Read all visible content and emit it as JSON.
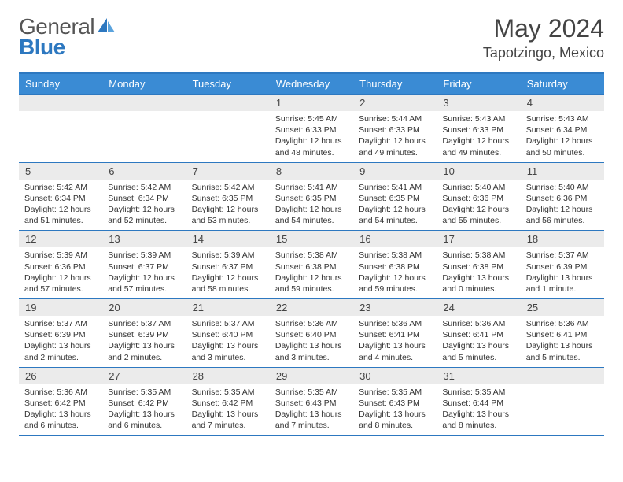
{
  "logo": {
    "text1": "General",
    "text2": "Blue"
  },
  "title": "May 2024",
  "location": "Tapotzingo, Mexico",
  "colors": {
    "header_bg": "#3a8bd4",
    "border": "#2d78c0",
    "daynum_bg": "#ebebeb",
    "text": "#333333"
  },
  "weekdays": [
    "Sunday",
    "Monday",
    "Tuesday",
    "Wednesday",
    "Thursday",
    "Friday",
    "Saturday"
  ],
  "weeks": [
    [
      {
        "n": "",
        "lines": []
      },
      {
        "n": "",
        "lines": []
      },
      {
        "n": "",
        "lines": []
      },
      {
        "n": "1",
        "lines": [
          "Sunrise: 5:45 AM",
          "Sunset: 6:33 PM",
          "Daylight: 12 hours",
          "and 48 minutes."
        ]
      },
      {
        "n": "2",
        "lines": [
          "Sunrise: 5:44 AM",
          "Sunset: 6:33 PM",
          "Daylight: 12 hours",
          "and 49 minutes."
        ]
      },
      {
        "n": "3",
        "lines": [
          "Sunrise: 5:43 AM",
          "Sunset: 6:33 PM",
          "Daylight: 12 hours",
          "and 49 minutes."
        ]
      },
      {
        "n": "4",
        "lines": [
          "Sunrise: 5:43 AM",
          "Sunset: 6:34 PM",
          "Daylight: 12 hours",
          "and 50 minutes."
        ]
      }
    ],
    [
      {
        "n": "5",
        "lines": [
          "Sunrise: 5:42 AM",
          "Sunset: 6:34 PM",
          "Daylight: 12 hours",
          "and 51 minutes."
        ]
      },
      {
        "n": "6",
        "lines": [
          "Sunrise: 5:42 AM",
          "Sunset: 6:34 PM",
          "Daylight: 12 hours",
          "and 52 minutes."
        ]
      },
      {
        "n": "7",
        "lines": [
          "Sunrise: 5:42 AM",
          "Sunset: 6:35 PM",
          "Daylight: 12 hours",
          "and 53 minutes."
        ]
      },
      {
        "n": "8",
        "lines": [
          "Sunrise: 5:41 AM",
          "Sunset: 6:35 PM",
          "Daylight: 12 hours",
          "and 54 minutes."
        ]
      },
      {
        "n": "9",
        "lines": [
          "Sunrise: 5:41 AM",
          "Sunset: 6:35 PM",
          "Daylight: 12 hours",
          "and 54 minutes."
        ]
      },
      {
        "n": "10",
        "lines": [
          "Sunrise: 5:40 AM",
          "Sunset: 6:36 PM",
          "Daylight: 12 hours",
          "and 55 minutes."
        ]
      },
      {
        "n": "11",
        "lines": [
          "Sunrise: 5:40 AM",
          "Sunset: 6:36 PM",
          "Daylight: 12 hours",
          "and 56 minutes."
        ]
      }
    ],
    [
      {
        "n": "12",
        "lines": [
          "Sunrise: 5:39 AM",
          "Sunset: 6:36 PM",
          "Daylight: 12 hours",
          "and 57 minutes."
        ]
      },
      {
        "n": "13",
        "lines": [
          "Sunrise: 5:39 AM",
          "Sunset: 6:37 PM",
          "Daylight: 12 hours",
          "and 57 minutes."
        ]
      },
      {
        "n": "14",
        "lines": [
          "Sunrise: 5:39 AM",
          "Sunset: 6:37 PM",
          "Daylight: 12 hours",
          "and 58 minutes."
        ]
      },
      {
        "n": "15",
        "lines": [
          "Sunrise: 5:38 AM",
          "Sunset: 6:38 PM",
          "Daylight: 12 hours",
          "and 59 minutes."
        ]
      },
      {
        "n": "16",
        "lines": [
          "Sunrise: 5:38 AM",
          "Sunset: 6:38 PM",
          "Daylight: 12 hours",
          "and 59 minutes."
        ]
      },
      {
        "n": "17",
        "lines": [
          "Sunrise: 5:38 AM",
          "Sunset: 6:38 PM",
          "Daylight: 13 hours",
          "and 0 minutes."
        ]
      },
      {
        "n": "18",
        "lines": [
          "Sunrise: 5:37 AM",
          "Sunset: 6:39 PM",
          "Daylight: 13 hours",
          "and 1 minute."
        ]
      }
    ],
    [
      {
        "n": "19",
        "lines": [
          "Sunrise: 5:37 AM",
          "Sunset: 6:39 PM",
          "Daylight: 13 hours",
          "and 2 minutes."
        ]
      },
      {
        "n": "20",
        "lines": [
          "Sunrise: 5:37 AM",
          "Sunset: 6:39 PM",
          "Daylight: 13 hours",
          "and 2 minutes."
        ]
      },
      {
        "n": "21",
        "lines": [
          "Sunrise: 5:37 AM",
          "Sunset: 6:40 PM",
          "Daylight: 13 hours",
          "and 3 minutes."
        ]
      },
      {
        "n": "22",
        "lines": [
          "Sunrise: 5:36 AM",
          "Sunset: 6:40 PM",
          "Daylight: 13 hours",
          "and 3 minutes."
        ]
      },
      {
        "n": "23",
        "lines": [
          "Sunrise: 5:36 AM",
          "Sunset: 6:41 PM",
          "Daylight: 13 hours",
          "and 4 minutes."
        ]
      },
      {
        "n": "24",
        "lines": [
          "Sunrise: 5:36 AM",
          "Sunset: 6:41 PM",
          "Daylight: 13 hours",
          "and 5 minutes."
        ]
      },
      {
        "n": "25",
        "lines": [
          "Sunrise: 5:36 AM",
          "Sunset: 6:41 PM",
          "Daylight: 13 hours",
          "and 5 minutes."
        ]
      }
    ],
    [
      {
        "n": "26",
        "lines": [
          "Sunrise: 5:36 AM",
          "Sunset: 6:42 PM",
          "Daylight: 13 hours",
          "and 6 minutes."
        ]
      },
      {
        "n": "27",
        "lines": [
          "Sunrise: 5:35 AM",
          "Sunset: 6:42 PM",
          "Daylight: 13 hours",
          "and 6 minutes."
        ]
      },
      {
        "n": "28",
        "lines": [
          "Sunrise: 5:35 AM",
          "Sunset: 6:42 PM",
          "Daylight: 13 hours",
          "and 7 minutes."
        ]
      },
      {
        "n": "29",
        "lines": [
          "Sunrise: 5:35 AM",
          "Sunset: 6:43 PM",
          "Daylight: 13 hours",
          "and 7 minutes."
        ]
      },
      {
        "n": "30",
        "lines": [
          "Sunrise: 5:35 AM",
          "Sunset: 6:43 PM",
          "Daylight: 13 hours",
          "and 8 minutes."
        ]
      },
      {
        "n": "31",
        "lines": [
          "Sunrise: 5:35 AM",
          "Sunset: 6:44 PM",
          "Daylight: 13 hours",
          "and 8 minutes."
        ]
      },
      {
        "n": "",
        "lines": []
      }
    ]
  ]
}
